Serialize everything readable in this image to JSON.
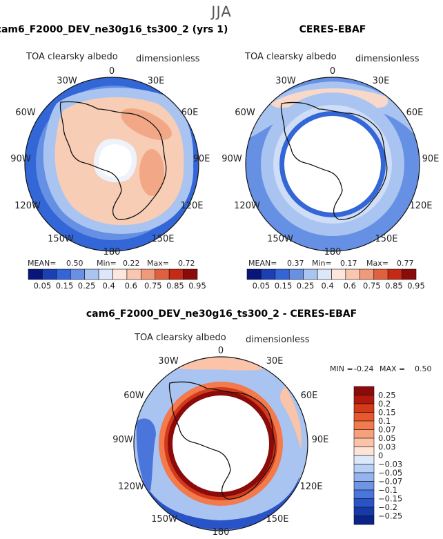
{
  "season": "JJA",
  "colors": {
    "land_outline": "#111111",
    "ring_edge": "#2a55c8"
  },
  "chart_data": [
    {
      "type": "heatmap",
      "projection": "south-polar-stereographic",
      "title": "cam6_F2000_DEV_ne30g16_ts300_2 (yrs 1)",
      "field_label": "TOA clearsky albedo",
      "units_label": "dimensionless",
      "lon_labels": [
        "0",
        "30E",
        "60E",
        "90E",
        "120E",
        "150E",
        "180",
        "150W",
        "120W",
        "90W",
        "60W",
        "30W"
      ],
      "stats": {
        "mean_label": "MEAN=",
        "mean": "0.50",
        "min_label": "Min=",
        "min": "0.22",
        "max_label": "Max=",
        "max": "0.72"
      },
      "colorbar": {
        "orientation": "horizontal",
        "levels": [
          "0.05",
          "0.15",
          "0.25",
          "0.4",
          "0.6",
          "0.75",
          "0.85",
          "0.95"
        ],
        "colors": [
          "#08157a",
          "#1c3fb5",
          "#3465d8",
          "#6a90e6",
          "#a9c4f0",
          "#dce8fa",
          "#fde7dc",
          "#f9c6b0",
          "#f09a7c",
          "#e0603f",
          "#c42a15",
          "#8b0a0a"
        ]
      },
      "zones": [
        {
          "lat_range": [
            -90,
            -85
          ],
          "value": "no data"
        },
        {
          "lat_range": [
            -85,
            -68
          ],
          "value": 0.6
        },
        {
          "lat_range": [
            -68,
            -60
          ],
          "value": 0.55
        },
        {
          "lat_range": [
            -60,
            -55
          ],
          "value": 0.4
        },
        {
          "lat_range": [
            -55,
            -50
          ],
          "value": 0.3
        }
      ]
    },
    {
      "type": "heatmap",
      "projection": "south-polar-stereographic",
      "title": "CERES-EBAF",
      "field_label": "TOA clearsky albedo",
      "units_label": "dimensionless",
      "lon_labels": [
        "0",
        "30E",
        "60E",
        "90E",
        "120E",
        "150E",
        "180",
        "150W",
        "120W",
        "90W",
        "60W",
        "30W"
      ],
      "stats": {
        "mean_label": "MEAN=",
        "mean": "0.37",
        "min_label": "Min=",
        "min": "0.17",
        "max_label": "Max=",
        "max": "0.77"
      },
      "colorbar": {
        "orientation": "horizontal",
        "levels": [
          "0.05",
          "0.15",
          "0.25",
          "0.4",
          "0.6",
          "0.75",
          "0.85",
          "0.95"
        ],
        "colors": [
          "#08157a",
          "#1c3fb5",
          "#3465d8",
          "#6a90e6",
          "#a9c4f0",
          "#dce8fa",
          "#fde7dc",
          "#f9c6b0",
          "#f09a7c",
          "#e0603f",
          "#c42a15",
          "#8b0a0a"
        ]
      },
      "zones": [
        {
          "lat_range": [
            -90,
            -67
          ],
          "value": "no data (polar night)"
        },
        {
          "lat_range": [
            -67,
            -64
          ],
          "value": 0.2
        },
        {
          "lat_range": [
            -64,
            -58
          ],
          "value": 0.4
        },
        {
          "lat_range": [
            -58,
            -50
          ],
          "value": 0.3
        }
      ]
    },
    {
      "type": "heatmap",
      "projection": "south-polar-stereographic",
      "title": "cam6_F2000_DEV_ne30g16_ts300_2 - CERES-EBAF",
      "field_label": "TOA clearsky albedo",
      "units_label": "dimensionless",
      "lon_labels": [
        "0",
        "30E",
        "60E",
        "90E",
        "120E",
        "150E",
        "180",
        "150W",
        "120W",
        "90W",
        "60W",
        "30W"
      ],
      "stats": {
        "min_label": "MIN =",
        "min": "-0.24",
        "max_label": "MAX =",
        "max": "0.50"
      },
      "colorbar": {
        "orientation": "vertical",
        "levels": [
          "0.25",
          "0.2",
          "0.15",
          "0.1",
          "0.07",
          "0.05",
          "0.03",
          "0",
          "−0.03",
          "−0.05",
          "−0.07",
          "−0.1",
          "−0.15",
          "−0.2",
          "−0.25"
        ],
        "colors": [
          "#8b0a0a",
          "#b2180e",
          "#d23a1a",
          "#e8582c",
          "#f27a4c",
          "#f7a07c",
          "#fbc3a8",
          "#fde4d6",
          "#dce9fb",
          "#b8d0f5",
          "#93b4ef",
          "#6f95e6",
          "#4a75db",
          "#2954c7",
          "#173aa8",
          "#0b2286"
        ]
      },
      "zones": [
        {
          "lat_range": [
            -90,
            -67
          ],
          "value": "no data"
        },
        {
          "lat_range": [
            -67,
            -64
          ],
          "value": 0.3
        },
        {
          "lat_range": [
            -64,
            -58
          ],
          "value": 0.12
        },
        {
          "lat_range": [
            -58,
            -50
          ],
          "value": -0.05
        }
      ]
    }
  ]
}
